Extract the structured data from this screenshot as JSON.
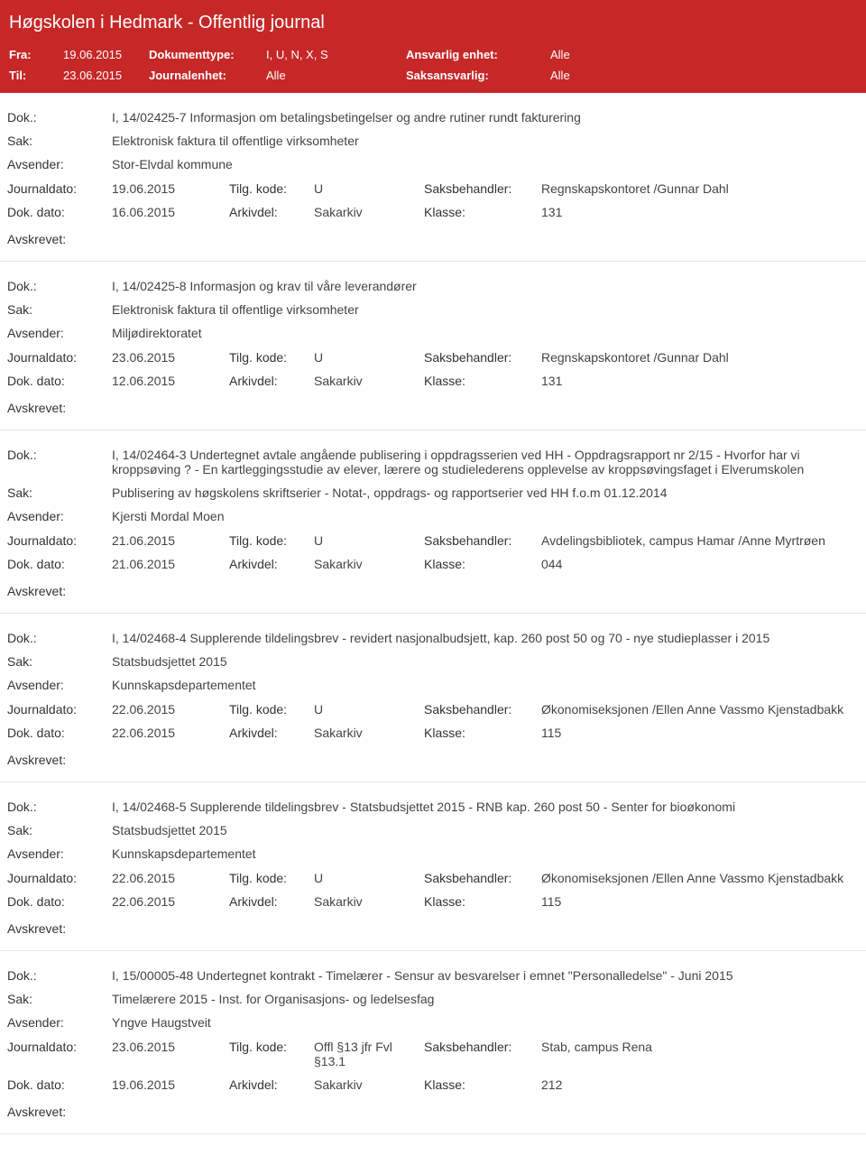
{
  "header": {
    "title": "Høgskolen i Hedmark - Offentlig journal",
    "fra_label": "Fra:",
    "fra_value": "19.06.2015",
    "til_label": "Til:",
    "til_value": "23.06.2015",
    "doktype_label": "Dokumenttype:",
    "doktype_value": "I, U, N, X, S",
    "journalenhet_label": "Journalenhet:",
    "journalenhet_value": "Alle",
    "ansvarlig_label": "Ansvarlig enhet:",
    "ansvarlig_value": "Alle",
    "saksansvarlig_label": "Saksansvarlig:",
    "saksansvarlig_value": "Alle"
  },
  "labels": {
    "dok": "Dok.:",
    "sak": "Sak:",
    "avsender": "Avsender:",
    "journaldato": "Journaldato:",
    "dokdato": "Dok. dato:",
    "tilgkode": "Tilg. kode:",
    "arkivdel": "Arkivdel:",
    "saksbehandler": "Saksbehandler:",
    "klasse": "Klasse:",
    "avskrevet": "Avskrevet:"
  },
  "entries": [
    {
      "dok": "I, 14/02425-7 Informasjon om betalingsbetingelser og andre rutiner rundt fakturering",
      "sak": "Elektronisk faktura til offentlige virksomheter",
      "avsender": "Stor-Elvdal kommune",
      "journaldato": "19.06.2015",
      "tilgkode": "U",
      "saksbehandler": "Regnskapskontoret /Gunnar Dahl",
      "dokdato": "16.06.2015",
      "arkivdel": "Sakarkiv",
      "klasse": "131"
    },
    {
      "dok": "I, 14/02425-8 Informasjon og krav til våre leverandører",
      "sak": "Elektronisk faktura til offentlige virksomheter",
      "avsender": "Miljødirektoratet",
      "journaldato": "23.06.2015",
      "tilgkode": "U",
      "saksbehandler": "Regnskapskontoret /Gunnar Dahl",
      "dokdato": "12.06.2015",
      "arkivdel": "Sakarkiv",
      "klasse": "131"
    },
    {
      "dok": "I, 14/02464-3 Undertegnet avtale angående publisering i oppdragsserien ved HH - Oppdragsrapport nr 2/15 - Hvorfor har vi kroppsøving ? - En kartleggingsstudie av elever, lærere og studielederens opplevelse av kroppsøvingsfaget i Elverumskolen",
      "sak": "Publisering av høgskolens skriftserier - Notat-, oppdrags- og rapportserier ved HH f.o.m 01.12.2014",
      "avsender": "Kjersti Mordal Moen",
      "journaldato": "21.06.2015",
      "tilgkode": "U",
      "saksbehandler": "Avdelingsbibliotek, campus Hamar /Anne Myrtrøen",
      "dokdato": "21.06.2015",
      "arkivdel": "Sakarkiv",
      "klasse": "044"
    },
    {
      "dok": "I, 14/02468-4 Supplerende tildelingsbrev - revidert nasjonalbudsjett, kap. 260 post 50 og 70 - nye studieplasser i 2015",
      "sak": "Statsbudsjettet 2015",
      "avsender": "Kunnskapsdepartementet",
      "journaldato": "22.06.2015",
      "tilgkode": "U",
      "saksbehandler": "Økonomiseksjonen /Ellen Anne Vassmo Kjenstadbakk",
      "dokdato": "22.06.2015",
      "arkivdel": "Sakarkiv",
      "klasse": "115"
    },
    {
      "dok": "I, 14/02468-5 Supplerende tildelingsbrev - Statsbudsjettet 2015 - RNB kap. 260 post 50 - Senter for bioøkonomi",
      "sak": "Statsbudsjettet 2015",
      "avsender": "Kunnskapsdepartementet",
      "journaldato": "22.06.2015",
      "tilgkode": "U",
      "saksbehandler": "Økonomiseksjonen /Ellen Anne Vassmo Kjenstadbakk",
      "dokdato": "22.06.2015",
      "arkivdel": "Sakarkiv",
      "klasse": "115"
    },
    {
      "dok": "I, 15/00005-48 Undertegnet kontrakt - Timelærer - Sensur av besvarelser i emnet \"Personalledelse\" - Juni 2015",
      "sak": "Timelærere 2015 - Inst. for Organisasjons- og ledelsesfag",
      "avsender": "Yngve Haugstveit",
      "journaldato": "23.06.2015",
      "tilgkode": "Offl §13 jfr Fvl §13.1",
      "saksbehandler": "Stab, campus Rena",
      "dokdato": "19.06.2015",
      "arkivdel": "Sakarkiv",
      "klasse": "212"
    }
  ]
}
